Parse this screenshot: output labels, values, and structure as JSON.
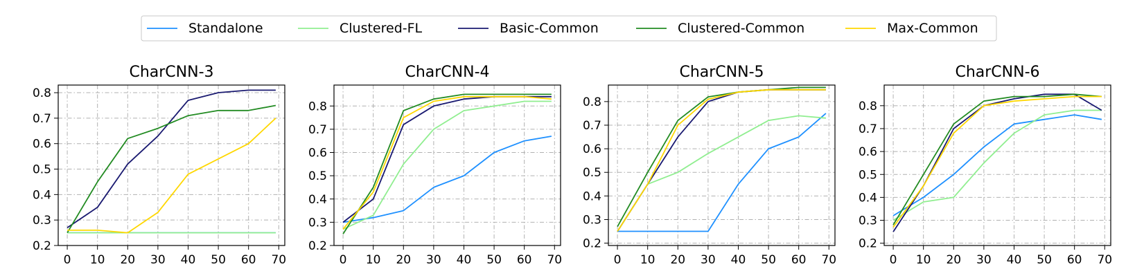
{
  "legend": {
    "entries": [
      "Standalone",
      "Clustered-FL",
      "Basic-Common",
      "Clustered-Common",
      "Max-Common"
    ],
    "colors": [
      "#1e90ff",
      "#90ee90",
      "#191970",
      "#228b22",
      "#ffd700"
    ],
    "placement": "top-center"
  },
  "chart_data": [
    {
      "type": "line",
      "title": "CharCNN-3",
      "xlabel": "",
      "ylabel": "",
      "xlim": [
        -3,
        72
      ],
      "ylim": [
        0.2,
        0.83
      ],
      "xticks": [
        0,
        10,
        20,
        30,
        40,
        50,
        60,
        70
      ],
      "yticks": [
        0.2,
        0.3,
        0.4,
        0.5,
        0.6,
        0.7,
        0.8
      ],
      "grid": true,
      "series": [
        {
          "name": "Standalone",
          "color": "#1e90ff",
          "x": [
            0,
            10,
            20,
            30,
            40,
            50,
            60,
            69
          ],
          "y": [
            0.25,
            0.25,
            0.25,
            0.25,
            0.25,
            0.25,
            0.25,
            0.25
          ]
        },
        {
          "name": "Clustered-FL",
          "color": "#90ee90",
          "x": [
            0,
            10,
            20,
            30,
            40,
            50,
            60,
            69
          ],
          "y": [
            0.25,
            0.25,
            0.25,
            0.25,
            0.25,
            0.25,
            0.25,
            0.25
          ]
        },
        {
          "name": "Basic-Common",
          "color": "#191970",
          "x": [
            0,
            10,
            20,
            30,
            40,
            50,
            60,
            69
          ],
          "y": [
            0.27,
            0.35,
            0.52,
            0.63,
            0.77,
            0.8,
            0.81,
            0.81
          ]
        },
        {
          "name": "Clustered-Common",
          "color": "#228b22",
          "x": [
            0,
            10,
            20,
            30,
            40,
            50,
            60,
            69
          ],
          "y": [
            0.25,
            0.45,
            0.62,
            0.66,
            0.71,
            0.73,
            0.73,
            0.75
          ]
        },
        {
          "name": "Max-Common",
          "color": "#ffd700",
          "x": [
            0,
            10,
            20,
            30,
            40,
            50,
            60,
            69
          ],
          "y": [
            0.26,
            0.26,
            0.25,
            0.33,
            0.48,
            0.54,
            0.6,
            0.7
          ]
        }
      ]
    },
    {
      "type": "line",
      "title": "CharCNN-4",
      "xlabel": "",
      "ylabel": "",
      "xlim": [
        -3,
        72
      ],
      "ylim": [
        0.2,
        0.89
      ],
      "xticks": [
        0,
        10,
        20,
        30,
        40,
        50,
        60,
        70
      ],
      "yticks": [
        0.2,
        0.3,
        0.4,
        0.5,
        0.6,
        0.7,
        0.8
      ],
      "grid": true,
      "series": [
        {
          "name": "Standalone",
          "color": "#1e90ff",
          "x": [
            0,
            10,
            20,
            30,
            40,
            50,
            60,
            69
          ],
          "y": [
            0.3,
            0.32,
            0.35,
            0.45,
            0.5,
            0.6,
            0.65,
            0.67
          ]
        },
        {
          "name": "Clustered-FL",
          "color": "#90ee90",
          "x": [
            0,
            10,
            20,
            30,
            40,
            50,
            60,
            69
          ],
          "y": [
            0.27,
            0.33,
            0.55,
            0.7,
            0.78,
            0.8,
            0.82,
            0.82
          ]
        },
        {
          "name": "Basic-Common",
          "color": "#191970",
          "x": [
            0,
            10,
            20,
            30,
            40,
            50,
            60,
            69
          ],
          "y": [
            0.3,
            0.4,
            0.72,
            0.8,
            0.83,
            0.84,
            0.84,
            0.84
          ]
        },
        {
          "name": "Clustered-Common",
          "color": "#228b22",
          "x": [
            0,
            10,
            20,
            30,
            40,
            50,
            60,
            69
          ],
          "y": [
            0.25,
            0.45,
            0.78,
            0.83,
            0.85,
            0.85,
            0.85,
            0.85
          ]
        },
        {
          "name": "Max-Common",
          "color": "#ffd700",
          "x": [
            0,
            10,
            20,
            30,
            40,
            50,
            60,
            69
          ],
          "y": [
            0.27,
            0.43,
            0.75,
            0.82,
            0.84,
            0.84,
            0.84,
            0.83
          ]
        }
      ]
    },
    {
      "type": "line",
      "title": "CharCNN-5",
      "xlabel": "",
      "ylabel": "",
      "xlim": [
        -3,
        72
      ],
      "ylim": [
        0.19,
        0.87
      ],
      "xticks": [
        0,
        10,
        20,
        30,
        40,
        50,
        60,
        70
      ],
      "yticks": [
        0.2,
        0.3,
        0.4,
        0.5,
        0.6,
        0.7,
        0.8
      ],
      "grid": true,
      "series": [
        {
          "name": "Standalone",
          "color": "#1e90ff",
          "x": [
            0,
            10,
            20,
            30,
            40,
            50,
            60,
            69
          ],
          "y": [
            0.25,
            0.25,
            0.25,
            0.25,
            0.45,
            0.6,
            0.65,
            0.75
          ]
        },
        {
          "name": "Clustered-FL",
          "color": "#90ee90",
          "x": [
            0,
            10,
            20,
            30,
            40,
            50,
            60,
            69
          ],
          "y": [
            0.25,
            0.45,
            0.5,
            0.58,
            0.65,
            0.72,
            0.74,
            0.73
          ]
        },
        {
          "name": "Basic-Common",
          "color": "#191970",
          "x": [
            0,
            10,
            20,
            30,
            40,
            50,
            60,
            69
          ],
          "y": [
            0.25,
            0.45,
            0.65,
            0.8,
            0.84,
            0.85,
            0.85,
            0.85
          ]
        },
        {
          "name": "Clustered-Common",
          "color": "#228b22",
          "x": [
            0,
            10,
            20,
            30,
            40,
            50,
            60,
            69
          ],
          "y": [
            0.27,
            0.5,
            0.72,
            0.82,
            0.84,
            0.85,
            0.86,
            0.86
          ]
        },
        {
          "name": "Max-Common",
          "color": "#ffd700",
          "x": [
            0,
            10,
            20,
            30,
            40,
            50,
            60,
            69
          ],
          "y": [
            0.25,
            0.45,
            0.7,
            0.81,
            0.84,
            0.85,
            0.85,
            0.85
          ]
        }
      ]
    },
    {
      "type": "line",
      "title": "CharCNN-6",
      "xlabel": "",
      "ylabel": "",
      "xlim": [
        -3,
        72
      ],
      "ylim": [
        0.19,
        0.89
      ],
      "xticks": [
        0,
        10,
        20,
        30,
        40,
        50,
        60,
        70
      ],
      "yticks": [
        0.2,
        0.3,
        0.4,
        0.5,
        0.6,
        0.7,
        0.8
      ],
      "grid": true,
      "series": [
        {
          "name": "Standalone",
          "color": "#1e90ff",
          "x": [
            0,
            10,
            20,
            30,
            40,
            50,
            60,
            69
          ],
          "y": [
            0.32,
            0.4,
            0.5,
            0.62,
            0.72,
            0.74,
            0.76,
            0.74
          ]
        },
        {
          "name": "Clustered-FL",
          "color": "#90ee90",
          "x": [
            0,
            10,
            20,
            30,
            40,
            50,
            60,
            69
          ],
          "y": [
            0.3,
            0.38,
            0.4,
            0.55,
            0.68,
            0.76,
            0.78,
            0.78
          ]
        },
        {
          "name": "Basic-Common",
          "color": "#191970",
          "x": [
            0,
            10,
            20,
            30,
            40,
            50,
            60,
            69
          ],
          "y": [
            0.25,
            0.45,
            0.7,
            0.8,
            0.83,
            0.85,
            0.85,
            0.78
          ]
        },
        {
          "name": "Clustered-Common",
          "color": "#228b22",
          "x": [
            0,
            10,
            20,
            30,
            40,
            50,
            60,
            69
          ],
          "y": [
            0.28,
            0.5,
            0.72,
            0.82,
            0.84,
            0.84,
            0.85,
            0.84
          ]
        },
        {
          "name": "Max-Common",
          "color": "#ffd700",
          "x": [
            0,
            10,
            20,
            30,
            40,
            50,
            60,
            69
          ],
          "y": [
            0.27,
            0.45,
            0.68,
            0.8,
            0.82,
            0.83,
            0.84,
            0.84
          ]
        }
      ]
    }
  ]
}
